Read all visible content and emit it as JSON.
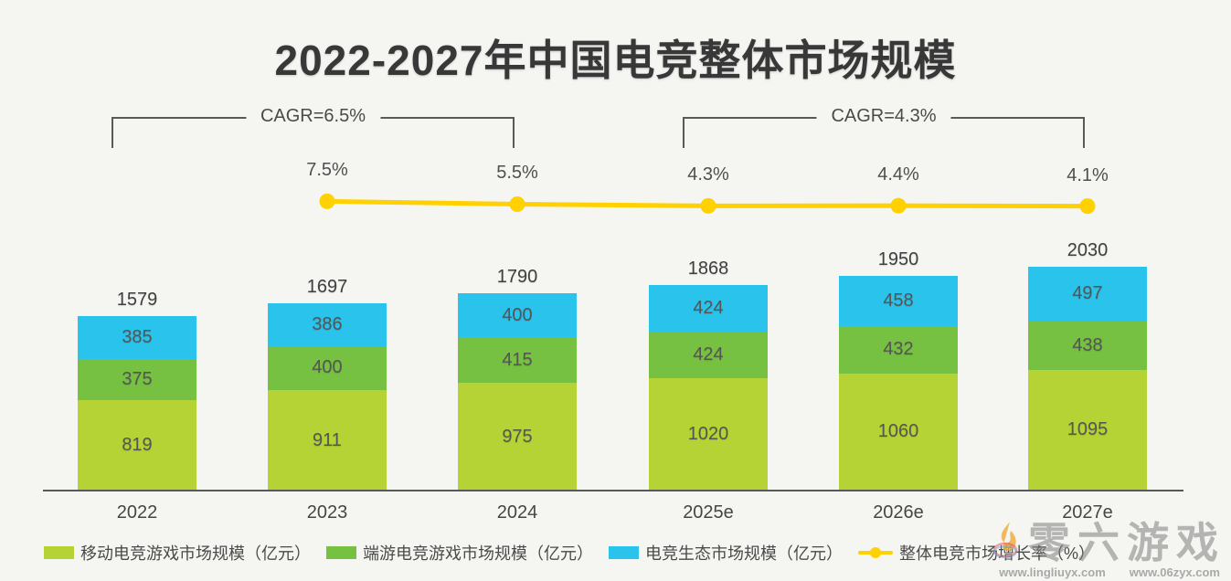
{
  "page": {
    "background": "#f5f5f2"
  },
  "title": "2022-2027年中国电竞整体市场规模",
  "chart_data": {
    "type": "bar",
    "stacked": true,
    "title": "2022-2027年中国电竞整体市场规模",
    "categories": [
      "2022",
      "2023",
      "2024",
      "2025e",
      "2026e",
      "2027e"
    ],
    "series": [
      {
        "name": "移动电竞游戏市场规模（亿元）",
        "color": "#b5d334",
        "values": [
          819,
          911,
          975,
          1020,
          1060,
          1095
        ]
      },
      {
        "name": "端游电竞游戏市场规模（亿元）",
        "color": "#77c142",
        "values": [
          375,
          400,
          415,
          424,
          432,
          438
        ]
      },
      {
        "name": "电竞生态市场规模（亿元）",
        "color": "#2ac3ec",
        "values": [
          385,
          386,
          400,
          424,
          458,
          497
        ]
      }
    ],
    "totals": [
      1579,
      1697,
      1790,
      1868,
      1950,
      2030
    ],
    "line_series": {
      "name": "整体电竞市场增长率（%）",
      "color": "#ffd100",
      "categories": [
        "2023",
        "2024",
        "2025e",
        "2026e",
        "2027e"
      ],
      "values": [
        7.5,
        5.5,
        4.3,
        4.4,
        4.1
      ],
      "value_labels": [
        "7.5%",
        "5.5%",
        "4.3%",
        "4.4%",
        "4.1%"
      ]
    },
    "annotations": [
      {
        "label": "CAGR=6.5%",
        "from_index": 0,
        "to_index": 2
      },
      {
        "label": "CAGR=4.3%",
        "from_index": 3,
        "to_index": 5
      }
    ],
    "ylim": [
      0,
      2030
    ],
    "grid": false,
    "legend_position": "bottom"
  },
  "legend": [
    {
      "type": "swatch",
      "color": "#b5d334",
      "label": "移动电竞游戏市场规模（亿元）"
    },
    {
      "type": "swatch",
      "color": "#77c142",
      "label": "端游电竞游戏市场规模（亿元）"
    },
    {
      "type": "swatch",
      "color": "#2ac3ec",
      "label": "电竞生态市场规模（亿元）"
    },
    {
      "type": "line",
      "color": "#ffd100",
      "label": "整体电竞市场增长率（%）"
    }
  ],
  "watermark": {
    "brand": "零六游戏",
    "urls": [
      "www.lingliuyx.com",
      "www.06zyx.com"
    ]
  }
}
